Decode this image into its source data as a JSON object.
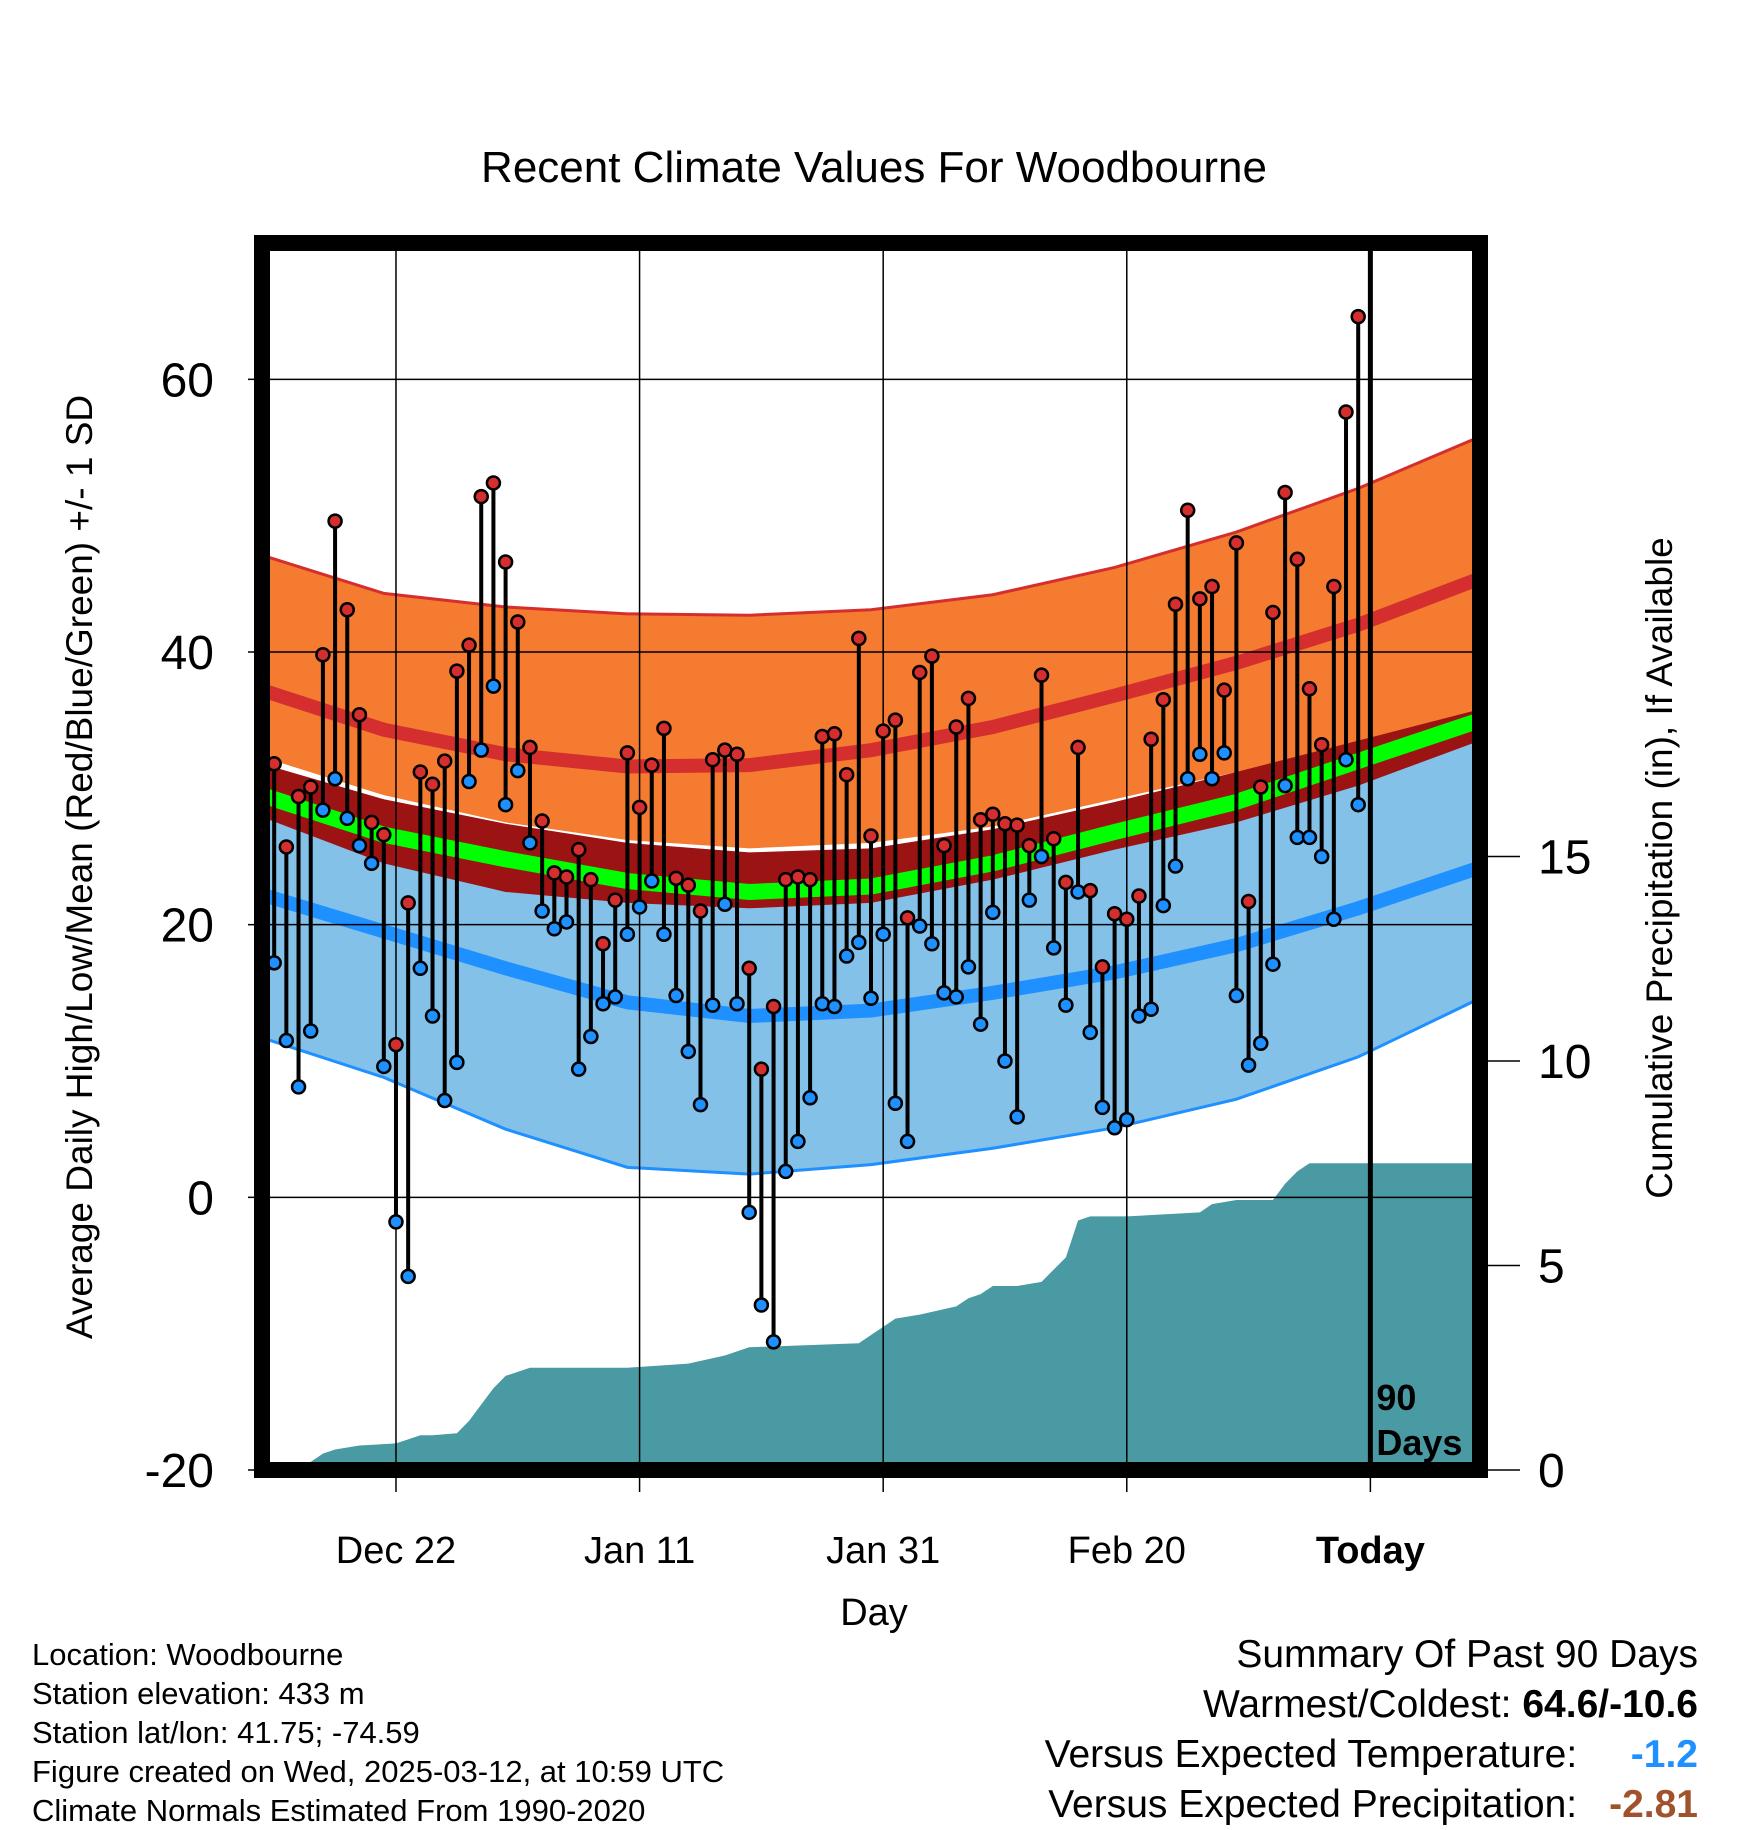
{
  "title": "Recent Climate Values For Woodbourne",
  "colors": {
    "high_band": "#f47b30",
    "high_line": "#d42e2e",
    "low_band": "#83c1e8",
    "low_line": "#1e90ff",
    "mean_band_dark": "#9b1313",
    "mean_line": "#00ff00",
    "precip": "#4a9aa3",
    "frame": "#000000",
    "temp_departure": "#1e90ff",
    "precip_departure": "#a0522d"
  },
  "chart_data": {
    "type": "line",
    "title": "Recent Climate Values For Woodbourne",
    "xlabel": "Day",
    "ylabel": "Average Daily High/Low/Mean (Red/Blue/Green) +/- 1 SD",
    "y2label": "Cumulative Precipitation (in), If Available",
    "ylim": [
      -20,
      70
    ],
    "y2lim": [
      0,
      30
    ],
    "yticks": [
      "60",
      "40",
      "20",
      "0",
      "-20"
    ],
    "y2ticks": [
      "15",
      "10",
      "5",
      "0"
    ],
    "x_tick_labels": [
      "Dec 22",
      "Jan 11",
      "Jan 31",
      "Feb 20",
      "Today"
    ],
    "x_tick_days": [
      11,
      31,
      51,
      71,
      91
    ],
    "xlim": [
      0,
      100
    ],
    "grid": true,
    "today_day": 91,
    "today_label_line1": "90",
    "today_label_line2": "Days",
    "normals": {
      "day": [
        0,
        10,
        20,
        30,
        40,
        50,
        60,
        70,
        80,
        90,
        100
      ],
      "high_mean": [
        37.2,
        34.3,
        32.5,
        31.6,
        31.7,
        32.8,
        34.5,
        36.8,
        39.2,
        42.0,
        45.4
      ],
      "high_upper": [
        47.1,
        44.3,
        43.3,
        42.8,
        42.7,
        43.1,
        44.2,
        46.2,
        48.8,
        52.0,
        55.8
      ],
      "high_lower": [
        32.3,
        29.5,
        27.5,
        26.2,
        25.6,
        26.0,
        27.2,
        29.2,
        31.2,
        33.0,
        35.8
      ],
      "low_mean": [
        22.2,
        19.5,
        16.8,
        14.3,
        13.3,
        13.7,
        15.0,
        16.5,
        18.5,
        21.2,
        24.2
      ],
      "low_upper": [
        30.4,
        28.0,
        26.0,
        24.7,
        24.1,
        24.5,
        25.8,
        27.7,
        29.7,
        31.6,
        33.8
      ],
      "low_lower": [
        11.7,
        8.8,
        5.0,
        2.2,
        1.7,
        2.4,
        3.6,
        5.1,
        7.2,
        10.3,
        14.6
      ],
      "mean_mean": [
        29.5,
        26.6,
        24.8,
        23.2,
        22.4,
        22.8,
        24.5,
        26.8,
        29.0,
        32.0,
        35.0
      ],
      "mean_upper": [
        31.8,
        29.2,
        27.4,
        26.0,
        25.3,
        25.6,
        27.0,
        29.0,
        31.2,
        33.5,
        35.8
      ],
      "mean_lower": [
        27.9,
        24.5,
        22.4,
        21.6,
        21.2,
        21.6,
        23.3,
        25.5,
        27.5,
        30.2,
        33.5
      ]
    },
    "series": [
      {
        "name": "Red",
        "values": [
          31.8,
          25.7,
          29.4,
          30.1,
          39.8,
          49.6,
          43.1,
          35.4,
          27.5,
          26.6,
          11.2,
          21.6,
          31.2,
          30.3,
          32.0,
          38.6,
          40.5,
          51.4,
          52.4,
          46.6,
          42.2,
          33.0,
          27.6,
          23.8,
          23.5,
          25.5,
          23.3,
          18.6,
          21.8,
          32.6,
          28.6,
          31.7,
          34.4,
          23.4,
          22.9,
          21.0,
          32.1,
          32.8,
          32.5,
          16.8,
          9.4,
          14.0,
          23.3,
          23.5,
          23.3,
          33.8,
          34.0,
          31.0,
          41.0,
          26.5,
          34.2,
          35.0,
          20.5,
          38.5,
          39.7,
          25.8,
          34.5,
          36.6,
          27.7,
          28.1,
          27.4,
          27.3,
          25.8,
          38.3,
          26.3,
          23.1,
          33.0,
          22.5,
          16.9,
          20.8,
          20.4,
          22.1,
          33.6,
          36.5,
          43.5,
          50.4,
          43.9,
          44.8,
          37.2,
          48.0,
          21.7,
          30.1,
          42.9,
          51.7,
          46.8,
          37.3,
          33.2,
          44.8,
          57.6,
          64.6
        ]
      },
      {
        "name": "Blue",
        "values": [
          17.2,
          11.5,
          8.1,
          12.2,
          28.4,
          30.7,
          27.8,
          25.8,
          24.5,
          9.6,
          -1.8,
          -5.8,
          16.8,
          13.3,
          7.1,
          9.9,
          30.5,
          32.8,
          37.5,
          28.8,
          31.3,
          26.0,
          21.0,
          19.7,
          20.2,
          9.4,
          11.8,
          14.2,
          14.7,
          19.3,
          21.3,
          23.2,
          19.3,
          14.8,
          10.7,
          6.8,
          14.1,
          21.5,
          14.2,
          -1.1,
          -7.9,
          -10.6,
          1.9,
          4.1,
          7.3,
          14.2,
          14.0,
          17.7,
          18.7,
          14.6,
          19.3,
          6.9,
          4.1,
          19.9,
          18.6,
          15.0,
          14.7,
          16.9,
          12.7,
          20.9,
          10.0,
          5.9,
          21.8,
          25.0,
          18.3,
          14.1,
          22.4,
          12.1,
          6.6,
          5.1,
          5.7,
          13.3,
          13.8,
          21.4,
          24.3,
          30.7,
          32.5,
          30.7,
          32.6,
          14.8,
          9.7,
          11.3,
          17.1,
          30.2,
          26.4,
          26.4,
          25.0,
          20.4,
          32.1,
          28.8
        ]
      }
    ],
    "precip": {
      "day": [
        0,
        3,
        4,
        5,
        6,
        8,
        11,
        12,
        13,
        14,
        16,
        17,
        18,
        19,
        20,
        22,
        30,
        35,
        38,
        40,
        49,
        50,
        51,
        52,
        54,
        57,
        58,
        59,
        60,
        62,
        64,
        65,
        66,
        67,
        68,
        70,
        71,
        77,
        78,
        80,
        83,
        84,
        85,
        86,
        88,
        100
      ],
      "value": [
        0.0,
        0.0,
        0.2,
        0.4,
        0.5,
        0.6,
        0.65,
        0.75,
        0.85,
        0.85,
        0.9,
        1.2,
        1.6,
        2.0,
        2.3,
        2.5,
        2.5,
        2.6,
        2.8,
        3.0,
        3.1,
        3.3,
        3.5,
        3.7,
        3.8,
        4.0,
        4.2,
        4.3,
        4.5,
        4.5,
        4.6,
        4.9,
        5.2,
        6.1,
        6.2,
        6.2,
        6.2,
        6.3,
        6.5,
        6.6,
        6.6,
        7.0,
        7.3,
        7.5,
        7.5,
        7.5
      ]
    }
  },
  "info": {
    "location": "Location: Woodbourne",
    "elevation": "Station elevation: 433 m",
    "latlon": "Station lat/lon: 41.75; -74.59",
    "created": "Figure created on Wed, 2025-03-12, at 10:59 UTC",
    "normals": "Climate Normals Estimated From 1990-2020"
  },
  "summary": {
    "title": "Summary Of Past 90 Days",
    "warmest_label": "Warmest/Coldest:",
    "warmest_value": "64.6/-10.6",
    "temp_label": "Versus Expected Temperature:",
    "temp_value": "-1.2",
    "precip_label": "Versus Expected Precipitation:",
    "precip_value": "-2.81"
  }
}
